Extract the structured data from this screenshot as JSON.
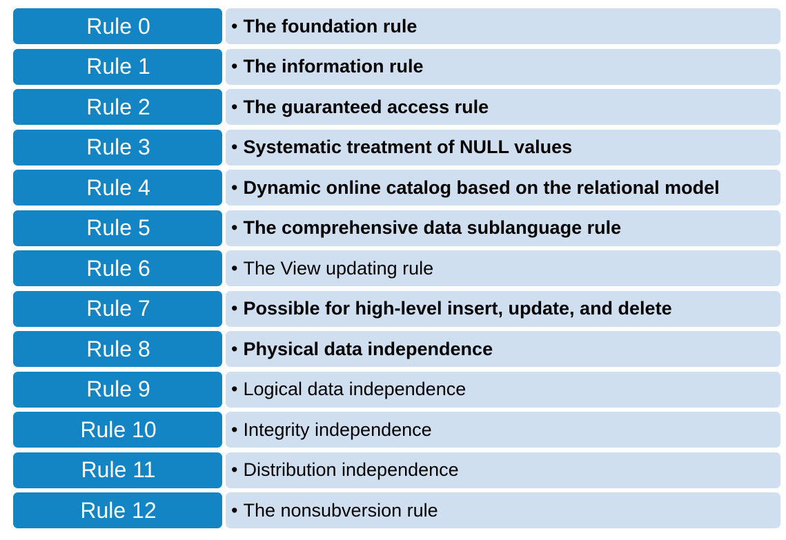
{
  "rules": [
    {
      "label": "Rule 0",
      "text": "The foundation rule",
      "bold": true
    },
    {
      "label": "Rule 1",
      "text": "The information rule",
      "bold": true
    },
    {
      "label": "Rule 2",
      "text": "The guaranteed access rule",
      "bold": true
    },
    {
      "label": "Rule 3",
      "text": "Systematic treatment of NULL values",
      "bold": true
    },
    {
      "label": "Rule 4",
      "text": "Dynamic online catalog based on the relational model",
      "bold": true
    },
    {
      "label": "Rule 5",
      "text": "The comprehensive data sublanguage rule",
      "bold": true
    },
    {
      "label": "Rule 6",
      "text": "The View updating rule",
      "bold": false
    },
    {
      "label": "Rule 7",
      "text": "Possible for high-level insert, update, and delete",
      "bold": true
    },
    {
      "label": "Rule 8",
      "text": "Physical data independence",
      "bold": true
    },
    {
      "label": "Rule 9",
      "text": "Logical data independence",
      "bold": false
    },
    {
      "label": "Rule 10",
      "text": "Integrity independence",
      "bold": false
    },
    {
      "label": "Rule 11",
      "text": "Distribution independence",
      "bold": false
    },
    {
      "label": "Rule 12",
      "text": "The nonsubversion rule",
      "bold": false
    }
  ],
  "colors": {
    "label_bg": "#1384c4",
    "desc_bg": "#cfdff0"
  },
  "bullet_glyph": "•"
}
